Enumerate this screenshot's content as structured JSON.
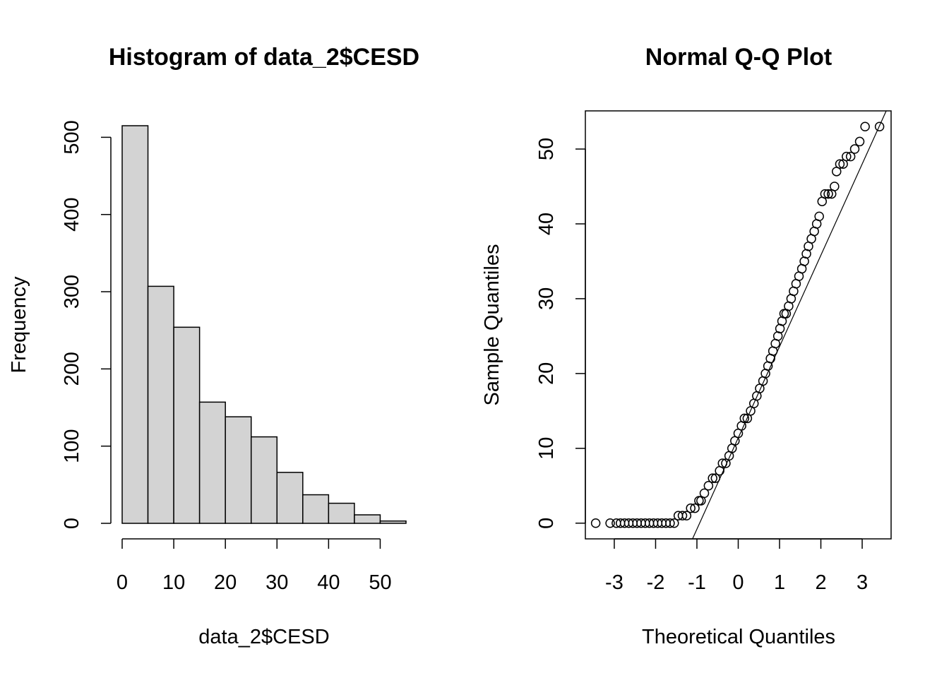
{
  "chart_data": [
    {
      "type": "bar",
      "subtype": "histogram",
      "title": "Histogram of data_2$CESD",
      "xlabel": "data_2$CESD",
      "ylabel": "Frequency",
      "bin_edges": [
        0,
        5,
        10,
        15,
        20,
        25,
        30,
        35,
        40,
        45,
        50,
        55
      ],
      "values": [
        515,
        307,
        254,
        157,
        138,
        112,
        66,
        37,
        26,
        11,
        3
      ],
      "xlim": [
        0,
        55
      ],
      "ylim": [
        0,
        515
      ],
      "x_ticks": [
        0,
        10,
        20,
        30,
        40,
        50
      ],
      "y_ticks": [
        0,
        100,
        200,
        300,
        400,
        500
      ],
      "bar_color": "#d3d3d3",
      "grid": false
    },
    {
      "type": "scatter",
      "subtype": "qq-plot",
      "title": "Normal Q-Q Plot",
      "xlabel": "Theoretical Quantiles",
      "ylabel": "Sample Quantiles",
      "xlim": [
        -3.7,
        3.7
      ],
      "ylim": [
        -2.1,
        55.1
      ],
      "x_ticks": [
        -3,
        -2,
        -1,
        0,
        1,
        2,
        3
      ],
      "y_ticks": [
        0,
        10,
        20,
        30,
        40,
        50
      ],
      "reference_line": {
        "intercept": 11.4,
        "slope": 12.2
      },
      "points": [
        [
          -3.45,
          0
        ],
        [
          -3.1,
          0
        ],
        [
          -2.95,
          0
        ],
        [
          -2.85,
          0
        ],
        [
          -2.75,
          0
        ],
        [
          -2.65,
          0
        ],
        [
          -2.55,
          0
        ],
        [
          -2.45,
          0
        ],
        [
          -2.35,
          0
        ],
        [
          -2.25,
          0
        ],
        [
          -2.15,
          0
        ],
        [
          -2.05,
          0
        ],
        [
          -1.95,
          0
        ],
        [
          -1.85,
          0
        ],
        [
          -1.75,
          0
        ],
        [
          -1.65,
          0
        ],
        [
          -1.55,
          0
        ],
        [
          -1.45,
          1
        ],
        [
          -1.35,
          1
        ],
        [
          -1.25,
          1
        ],
        [
          -1.15,
          2
        ],
        [
          -1.05,
          2
        ],
        [
          -0.95,
          3
        ],
        [
          -0.9,
          3
        ],
        [
          -0.82,
          4
        ],
        [
          -0.72,
          5
        ],
        [
          -0.62,
          6
        ],
        [
          -0.55,
          6
        ],
        [
          -0.45,
          7
        ],
        [
          -0.38,
          8
        ],
        [
          -0.3,
          8
        ],
        [
          -0.22,
          9
        ],
        [
          -0.15,
          10
        ],
        [
          -0.08,
          11
        ],
        [
          0.0,
          12
        ],
        [
          0.08,
          13
        ],
        [
          0.15,
          14
        ],
        [
          0.22,
          14
        ],
        [
          0.3,
          15
        ],
        [
          0.38,
          16
        ],
        [
          0.45,
          17
        ],
        [
          0.52,
          18
        ],
        [
          0.6,
          19
        ],
        [
          0.66,
          20
        ],
        [
          0.72,
          21
        ],
        [
          0.78,
          22
        ],
        [
          0.84,
          23
        ],
        [
          0.9,
          24
        ],
        [
          0.96,
          25
        ],
        [
          1.01,
          26
        ],
        [
          1.06,
          27
        ],
        [
          1.11,
          28
        ],
        [
          1.16,
          28
        ],
        [
          1.22,
          29
        ],
        [
          1.28,
          30
        ],
        [
          1.34,
          31
        ],
        [
          1.4,
          32
        ],
        [
          1.47,
          33
        ],
        [
          1.54,
          34
        ],
        [
          1.6,
          35
        ],
        [
          1.65,
          36
        ],
        [
          1.7,
          37
        ],
        [
          1.77,
          38
        ],
        [
          1.84,
          39
        ],
        [
          1.9,
          40
        ],
        [
          1.96,
          41
        ],
        [
          2.03,
          43
        ],
        [
          2.1,
          44
        ],
        [
          2.18,
          44
        ],
        [
          2.26,
          44
        ],
        [
          2.33,
          45
        ],
        [
          2.38,
          47
        ],
        [
          2.46,
          48
        ],
        [
          2.54,
          48
        ],
        [
          2.62,
          49
        ],
        [
          2.72,
          49
        ],
        [
          2.82,
          50
        ],
        [
          2.94,
          51
        ],
        [
          3.07,
          53
        ],
        [
          3.42,
          53
        ]
      ]
    }
  ]
}
